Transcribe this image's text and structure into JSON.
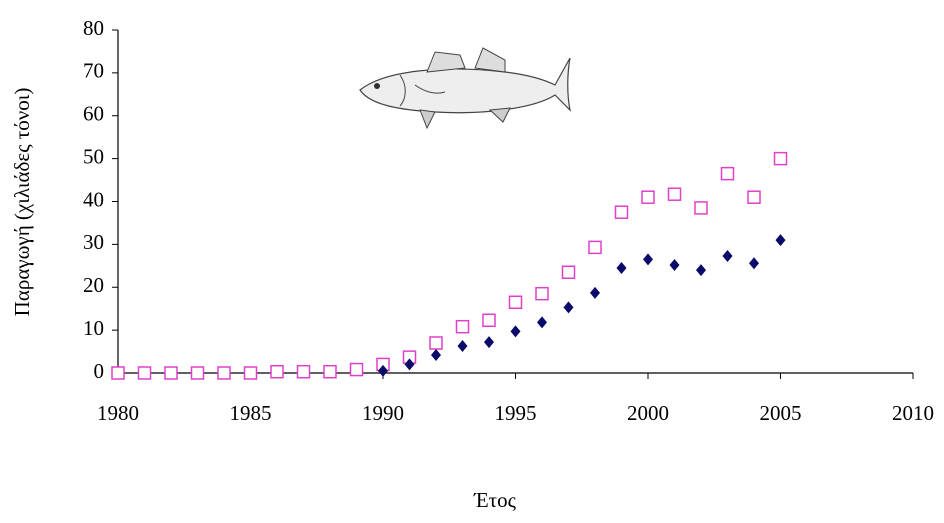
{
  "chart_data": {
    "type": "scatter",
    "x_label": "Έτος",
    "y_label": "Παραγωγή (χιλιάδες τόνοι)",
    "x": [
      1980,
      1981,
      1982,
      1983,
      1984,
      1985,
      1986,
      1987,
      1988,
      1989,
      1990,
      1991,
      1992,
      1993,
      1994,
      1995,
      1996,
      1997,
      1998,
      1999,
      2000,
      2001,
      2002,
      2003,
      2004,
      2005
    ],
    "series": [
      {
        "color": "#e040c8",
        "marker": "square-open",
        "values": [
          0,
          0,
          0,
          0,
          0,
          0,
          0.3,
          0.3,
          0.3,
          0.8,
          2,
          3.7,
          7,
          10.8,
          12.3,
          16.5,
          18.5,
          23.5,
          29.3,
          37.5,
          41,
          41.7,
          38.5,
          46.5,
          41,
          50
        ]
      },
      {
        "color": "#0a0a6a",
        "marker": "diamond",
        "values": [
          null,
          null,
          null,
          null,
          null,
          null,
          null,
          null,
          null,
          null,
          0.5,
          2,
          4.2,
          6.3,
          7.2,
          9.7,
          11.8,
          15.3,
          18.7,
          24.5,
          26.5,
          25.2,
          24,
          27.3,
          25.6,
          31
        ]
      }
    ],
    "xlim": [
      1980,
      2010
    ],
    "xticks": [
      1980,
      1985,
      1990,
      1995,
      2000,
      2005,
      2010
    ],
    "ylim": [
      0,
      80
    ],
    "yticks": [
      0,
      10,
      20,
      30,
      40,
      50,
      60,
      70,
      80
    ]
  }
}
